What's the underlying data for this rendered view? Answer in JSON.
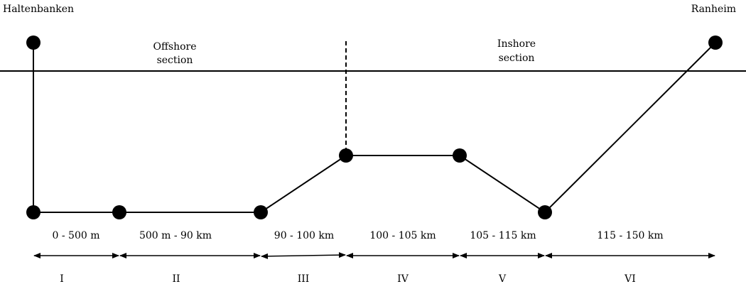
{
  "endpoints": {
    "start": "Haltenbanken",
    "end": "Ranheim"
  },
  "sections": {
    "offshore": [
      "Offshore",
      "section"
    ],
    "inshore": [
      "Inshore",
      "section"
    ]
  },
  "segments": [
    {
      "range": "0 - 500 m",
      "roman": "I"
    },
    {
      "range": "500 m - 90 km",
      "roman": "II"
    },
    {
      "range": "90 - 100 km",
      "roman": "III"
    },
    {
      "range": "100 - 105 km",
      "roman": "IV"
    },
    {
      "range": "105 - 115 km",
      "roman": "V"
    },
    {
      "range": "115 - 150 km",
      "roman": "VI"
    }
  ]
}
